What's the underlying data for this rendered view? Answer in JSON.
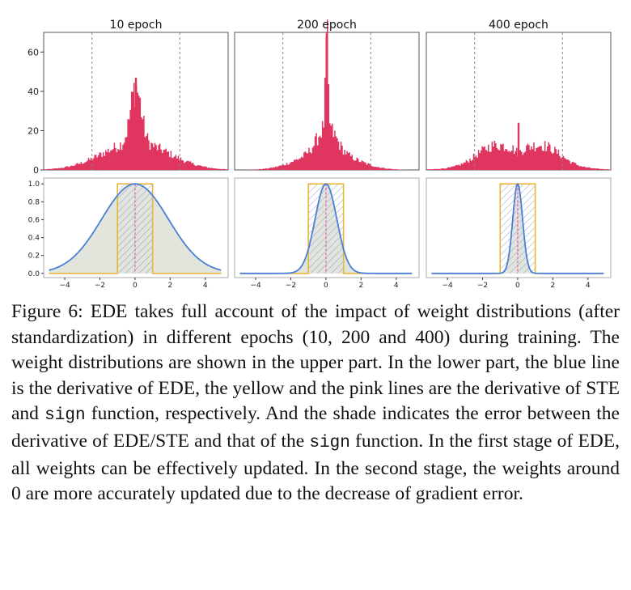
{
  "chart_data": [
    {
      "type": "bar",
      "panel": "upper",
      "title": "10 epoch",
      "ylim": [
        0,
        70
      ],
      "yticks": [
        "0",
        "20",
        "40",
        "60"
      ],
      "dashed_lines_at": [
        -1,
        1
      ],
      "peak_value": 47,
      "color": "#e0355f"
    },
    {
      "type": "bar",
      "panel": "upper",
      "title": "200 epoch",
      "ylim": [
        0,
        70
      ],
      "dashed_lines_at": [
        -1,
        1
      ],
      "peak_value": 70,
      "color": "#e0355f"
    },
    {
      "type": "bar",
      "panel": "upper",
      "title": "400 epoch",
      "ylim": [
        0,
        70
      ],
      "dashed_lines_at": [
        -1,
        1
      ],
      "peak_value": 24,
      "color": "#e0355f"
    },
    {
      "type": "line",
      "panel": "lower",
      "xlim": [
        -5,
        5
      ],
      "ylim": [
        0,
        1.0
      ],
      "xticks": [
        "−4",
        "−2",
        "0",
        "2",
        "4"
      ],
      "yticks": [
        "0.0",
        "0.2",
        "0.4",
        "0.6",
        "0.8",
        "1.0"
      ],
      "series": [
        {
          "role": "EDE derivative",
          "color": "#4a7fd8",
          "peak": 1.0,
          "width_param": 1.9
        },
        {
          "role": "STE derivative",
          "color": "#e8b63a",
          "x": [
            -1,
            1
          ],
          "value": 1.0
        },
        {
          "role": "sign derivative",
          "color": "#e86bb5",
          "x": 0
        }
      ]
    },
    {
      "type": "line",
      "panel": "lower",
      "xlim": [
        -5,
        5
      ],
      "ylim": [
        0,
        1.0
      ],
      "xticks": [
        "−4",
        "−2",
        "0",
        "2",
        "4"
      ],
      "series": [
        {
          "role": "EDE derivative",
          "color": "#4a7fd8",
          "peak": 1.0,
          "width_param": 0.62
        },
        {
          "role": "STE derivative",
          "color": "#e8b63a",
          "x": [
            -1,
            1
          ],
          "value": 1.0
        },
        {
          "role": "sign derivative",
          "color": "#e86bb5",
          "x": 0
        }
      ]
    },
    {
      "type": "line",
      "panel": "lower",
      "xlim": [
        -5,
        5
      ],
      "ylim": [
        0,
        1.0
      ],
      "xticks": [
        "−4",
        "−2",
        "0",
        "2",
        "4"
      ],
      "series": [
        {
          "role": "EDE derivative",
          "color": "#4a7fd8",
          "peak": 1.0,
          "width_param": 0.28
        },
        {
          "role": "STE derivative",
          "color": "#e8b63a",
          "x": [
            -1,
            1
          ],
          "value": 1.0
        },
        {
          "role": "sign derivative",
          "color": "#e86bb5",
          "x": 0
        }
      ]
    }
  ],
  "caption": {
    "label": "Figure 6:",
    "text_1": " EDE takes full account of the impact of weight distributions (after standardization) in different epochs (10, 200 and 400) during training. The weight distributions are shown in the upper part. In the lower part, the blue line is the derivative of EDE, the yellow and the pink lines are the derivative of STE and ",
    "code_1": "sign",
    "text_2": " function, respectively. And the shade indicates the error between the derivative of EDE/STE and that of the ",
    "code_2": "sign",
    "text_3": " function. In the first stage of EDE, all weights can be effectively updated. In the second stage, the weights around 0 are more accurately updated due to the decrease of gradient error."
  }
}
